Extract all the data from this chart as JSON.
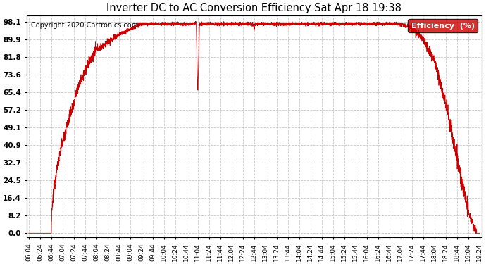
{
  "title": "Inverter DC to AC Conversion Efficiency Sat Apr 18 19:38",
  "copyright": "Copyright 2020 Cartronics.com",
  "legend_label": "Efficiency  (%)",
  "legend_bg": "#cc0000",
  "legend_fg": "#ffffff",
  "line_color": "#cc0000",
  "bg_color": "#ffffff",
  "grid_color": "#c8c8c8",
  "yticks": [
    0.0,
    8.2,
    16.4,
    24.5,
    32.7,
    40.9,
    49.1,
    57.2,
    65.4,
    73.6,
    81.8,
    89.9,
    98.1
  ],
  "ymin": 0.0,
  "ymax": 98.1,
  "xtick_labels": [
    "06:04",
    "06:24",
    "06:44",
    "07:04",
    "07:24",
    "07:44",
    "08:04",
    "08:24",
    "08:44",
    "09:04",
    "09:24",
    "09:44",
    "10:04",
    "10:24",
    "10:44",
    "11:04",
    "11:24",
    "11:44",
    "12:04",
    "12:24",
    "12:44",
    "13:04",
    "13:24",
    "13:44",
    "14:04",
    "14:24",
    "14:44",
    "15:04",
    "15:24",
    "15:44",
    "16:04",
    "16:24",
    "16:44",
    "17:04",
    "17:24",
    "17:44",
    "18:04",
    "18:24",
    "18:44",
    "19:04",
    "19:24"
  ],
  "figsize": [
    6.9,
    3.75
  ],
  "dpi": 100
}
